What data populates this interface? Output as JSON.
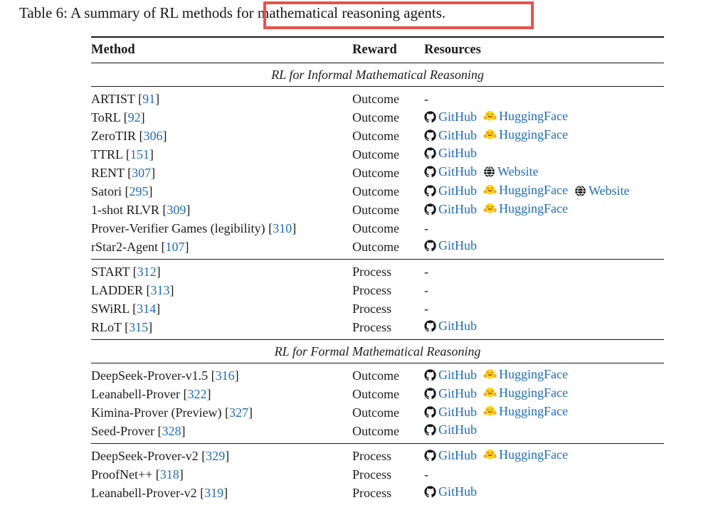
{
  "caption": "Table 6: A summary of RL methods for mathematical reasoning agents.",
  "annotation": {
    "color": "#e8524c"
  },
  "colors": {
    "link_blue": "#1e6bb8",
    "rule_black": "#1a1a1a",
    "github_black": "#10141a",
    "hf_yellow": "#ffd21e"
  },
  "resources_empty_marker": "-",
  "table": {
    "headers": [
      "Method",
      "Reward",
      "Resources"
    ],
    "sections": [
      {
        "title": "RL for Informal Mathematical Reasoning",
        "groups": [
          {
            "rows": [
              {
                "method": "ARTIST",
                "cite": "91",
                "reward": "Outcome",
                "resources": []
              },
              {
                "method": "ToRL",
                "cite": "92",
                "reward": "Outcome",
                "resources": [
                  {
                    "icon": "github",
                    "label": "GitHub"
                  },
                  {
                    "icon": "huggingface",
                    "label": "HuggingFace"
                  }
                ]
              },
              {
                "method": "ZeroTIR",
                "cite": "306",
                "reward": "Outcome",
                "resources": [
                  {
                    "icon": "github",
                    "label": "GitHub"
                  },
                  {
                    "icon": "huggingface",
                    "label": "HuggingFace"
                  }
                ]
              },
              {
                "method": "TTRL",
                "cite": "151",
                "reward": "Outcome",
                "resources": [
                  {
                    "icon": "github",
                    "label": "GitHub"
                  }
                ]
              },
              {
                "method": "RENT",
                "cite": "307",
                "reward": "Outcome",
                "resources": [
                  {
                    "icon": "github",
                    "label": "GitHub"
                  },
                  {
                    "icon": "website",
                    "label": "Website"
                  }
                ]
              },
              {
                "method": "Satori",
                "cite": "295",
                "reward": "Outcome",
                "resources": [
                  {
                    "icon": "github",
                    "label": "GitHub"
                  },
                  {
                    "icon": "huggingface",
                    "label": "HuggingFace"
                  },
                  {
                    "icon": "website",
                    "label": "Website"
                  }
                ]
              },
              {
                "method": "1-shot RLVR",
                "cite": "309",
                "reward": "Outcome",
                "resources": [
                  {
                    "icon": "github",
                    "label": "GitHub"
                  },
                  {
                    "icon": "huggingface",
                    "label": "HuggingFace"
                  }
                ]
              },
              {
                "method": "Prover-Verifier Games (legibility)",
                "cite": "310",
                "reward": "Outcome",
                "resources": []
              },
              {
                "method": "rStar2-Agent",
                "cite": "107",
                "reward": "Outcome",
                "resources": [
                  {
                    "icon": "github",
                    "label": "GitHub"
                  }
                ]
              }
            ]
          },
          {
            "rows": [
              {
                "method": "START",
                "cite": "312",
                "reward": "Process",
                "resources": []
              },
              {
                "method": "LADDER",
                "cite": "313",
                "reward": "Process",
                "resources": []
              },
              {
                "method": "SWiRL",
                "cite": "314",
                "reward": "Process",
                "resources": []
              },
              {
                "method": "RLoT",
                "cite": "315",
                "reward": "Process",
                "resources": [
                  {
                    "icon": "github",
                    "label": "GitHub"
                  }
                ]
              }
            ]
          }
        ]
      },
      {
        "title": "RL for Formal Mathematical Reasoning",
        "groups": [
          {
            "rows": [
              {
                "method": "DeepSeek-Prover-v1.5",
                "cite": "316",
                "reward": "Outcome",
                "resources": [
                  {
                    "icon": "github",
                    "label": "GitHub"
                  },
                  {
                    "icon": "huggingface",
                    "label": "HuggingFace"
                  }
                ]
              },
              {
                "method": "Leanabell-Prover",
                "cite": "322",
                "reward": "Outcome",
                "resources": [
                  {
                    "icon": "github",
                    "label": "GitHub"
                  },
                  {
                    "icon": "huggingface",
                    "label": "HuggingFace"
                  }
                ]
              },
              {
                "method": "Kimina-Prover (Preview)",
                "cite": "327",
                "reward": "Outcome",
                "resources": [
                  {
                    "icon": "github",
                    "label": "GitHub"
                  },
                  {
                    "icon": "huggingface",
                    "label": "HuggingFace"
                  }
                ]
              },
              {
                "method": "Seed-Prover",
                "cite": "328",
                "reward": "Outcome",
                "resources": [
                  {
                    "icon": "github",
                    "label": "GitHub"
                  }
                ]
              }
            ]
          },
          {
            "rows": [
              {
                "method": "DeepSeek-Prover-v2",
                "cite": "329",
                "reward": "Process",
                "resources": [
                  {
                    "icon": "github",
                    "label": "GitHub"
                  },
                  {
                    "icon": "huggingface",
                    "label": "HuggingFace"
                  }
                ]
              },
              {
                "method": "ProofNet++",
                "cite": "318",
                "reward": "Process",
                "resources": []
              },
              {
                "method": "Leanabell-Prover-v2",
                "cite": "319",
                "reward": "Process",
                "resources": [
                  {
                    "icon": "github",
                    "label": "GitHub"
                  }
                ]
              }
            ]
          }
        ]
      }
    ]
  }
}
